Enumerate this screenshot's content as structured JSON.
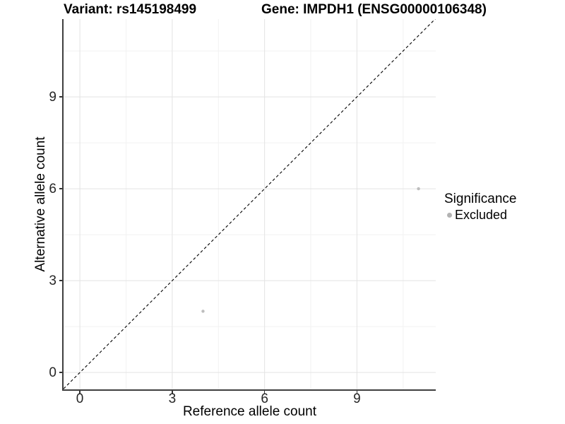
{
  "chart_data": {
    "type": "scatter",
    "title_left": "Variant: rs145198499",
    "title_right": "Gene: IMPDH1 (ENSG00000106348)",
    "xlabel": "Reference allele count",
    "ylabel": "Alternative allele count",
    "xlim": [
      -0.53,
      11.56
    ],
    "ylim": [
      -0.55,
      11.54
    ],
    "xticks": [
      0,
      3,
      6,
      9
    ],
    "yticks": [
      0,
      3,
      6,
      9
    ],
    "x_minor_ticks": [
      1.5,
      4.5,
      7.5,
      10.5
    ],
    "y_minor_ticks": [
      1.5,
      4.5,
      7.5,
      10.5
    ],
    "grid": "major+minor",
    "legend_position": "right",
    "points": [
      {
        "x": 4,
        "y": 2,
        "significance": "Excluded"
      },
      {
        "x": 11,
        "y": 6,
        "significance": "Excluded"
      }
    ],
    "identity_line": {
      "slope": 1,
      "intercept": 0,
      "style": "dashed",
      "color": "#000000"
    },
    "point_color": "#bdbdbd",
    "point_radius_px": 2.2,
    "legend": {
      "title": "Significance",
      "items": [
        {
          "label": "Excluded",
          "color": "#b3b3b3"
        }
      ]
    }
  },
  "colors": {
    "background": "#ffffff",
    "axis_line": "#3f3f3f",
    "grid_major": "#e3e3e3",
    "grid_minor": "#f2f2f2",
    "tick_label": "#262626",
    "title": "#000000"
  }
}
